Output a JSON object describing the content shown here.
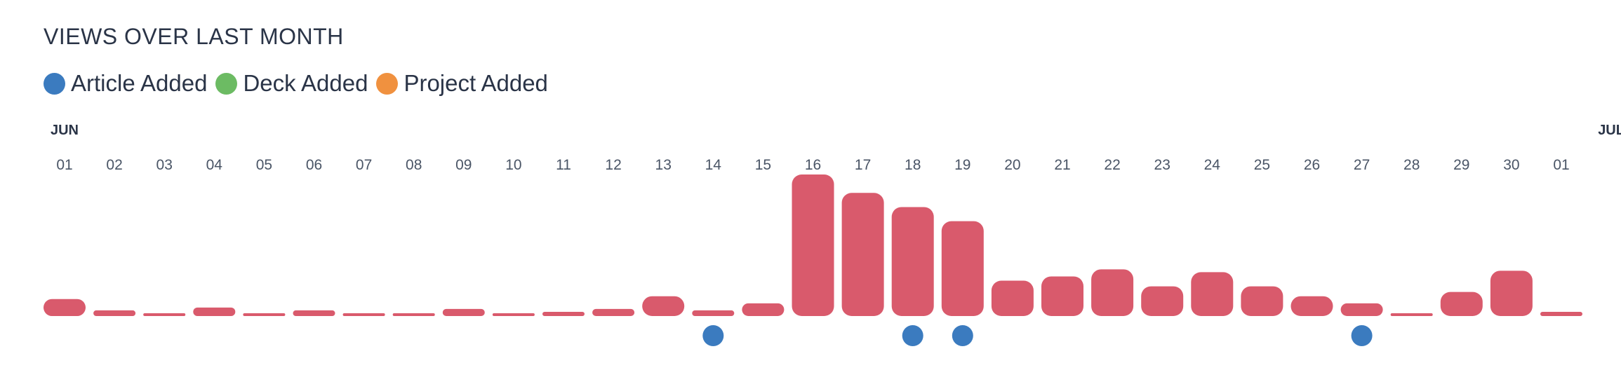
{
  "title": "VIEWS OVER LAST MONTH",
  "legend": [
    {
      "label": "Article Added",
      "color": "#3b7bbf"
    },
    {
      "label": "Deck Added",
      "color": "#6cbb63"
    },
    {
      "label": "Project Added",
      "color": "#f0913f"
    }
  ],
  "colors": {
    "bar": "#d95a6c",
    "article_marker": "#3b7bbf"
  },
  "chart_data": {
    "type": "bar",
    "month_labels": [
      {
        "label": "JUN",
        "at_index": 0
      },
      {
        "label": "JUL",
        "at_index": 31
      }
    ],
    "categories": [
      "01",
      "02",
      "03",
      "04",
      "05",
      "06",
      "07",
      "08",
      "09",
      "10",
      "11",
      "12",
      "13",
      "14",
      "15",
      "16",
      "17",
      "18",
      "19",
      "20",
      "21",
      "22",
      "23",
      "24",
      "25",
      "26",
      "27",
      "28",
      "29",
      "30",
      "01"
    ],
    "values": [
      12,
      4,
      2,
      6,
      2,
      4,
      1,
      1,
      5,
      1,
      3,
      5,
      14,
      4,
      9,
      100,
      87,
      77,
      67,
      25,
      28,
      33,
      21,
      31,
      21,
      14,
      9,
      2,
      17,
      32,
      3
    ],
    "article_added_days": [
      "14",
      "18",
      "19",
      "27"
    ],
    "deck_added_days": [],
    "project_added_days": []
  }
}
